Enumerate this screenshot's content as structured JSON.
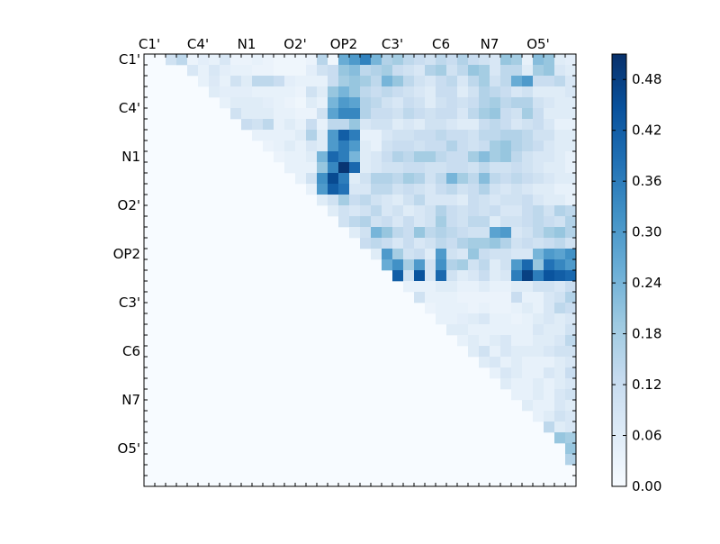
{
  "chart_data": {
    "type": "heatmap",
    "title": "",
    "xlabel": "",
    "ylabel": "",
    "n": 40,
    "matrix_kind": "upper-triangular",
    "x_tick_labels": [
      "C1'",
      "C4'",
      "N1",
      "O2'",
      "OP2",
      "C3'",
      "C6",
      "N7",
      "O5'"
    ],
    "y_tick_labels": [
      "C1'",
      "C4'",
      "N1",
      "O2'",
      "OP2",
      "C3'",
      "C6",
      "N7",
      "O5'"
    ],
    "tick_label_positions": [
      0,
      4.5,
      9,
      13.5,
      18,
      22.5,
      27,
      31.5,
      36
    ],
    "x_ticks_position": "top",
    "colormap": "Blues",
    "color_low": "#f7fbff",
    "color_high": "#08306b",
    "colorbar": {
      "min": 0.0,
      "max": 0.51,
      "ticks": [
        "0.00",
        "0.06",
        "0.12",
        "0.18",
        "0.24",
        "0.30",
        "0.36",
        "0.42",
        "0.48"
      ],
      "tick_values": [
        0.0,
        0.06,
        0.12,
        0.18,
        0.24,
        0.3,
        0.36,
        0.42,
        0.48
      ]
    },
    "rows": [
      {
        "row": 0,
        "start": 2,
        "values": [
          0.1,
          0.14,
          0.03,
          0.05,
          0.04,
          0.08,
          0.03,
          0.03,
          0.04,
          0.03,
          0.02,
          0.02,
          0.02,
          0.03,
          0.15,
          0.02,
          0.26,
          0.3,
          0.35,
          0.24,
          0.16,
          0.18,
          0.14,
          0.12,
          0.1,
          0.14,
          0.12,
          0.16,
          0.12,
          0.1,
          0.08,
          0.2,
          0.18,
          0.04,
          0.22,
          0.2,
          0.06,
          0.05
        ]
      },
      {
        "row": 1,
        "start": 4,
        "values": [
          0.08,
          0.04,
          0.08,
          0.05,
          0.04,
          0.04,
          0.03,
          0.03,
          0.02,
          0.02,
          0.02,
          0.05,
          0.1,
          0.12,
          0.2,
          0.22,
          0.14,
          0.16,
          0.18,
          0.12,
          0.1,
          0.08,
          0.16,
          0.18,
          0.1,
          0.14,
          0.2,
          0.18,
          0.08,
          0.14,
          0.14,
          0.06,
          0.18,
          0.2,
          0.08,
          0.06
        ]
      },
      {
        "row": 2,
        "start": 5,
        "values": [
          0.04,
          0.07,
          0.04,
          0.1,
          0.06,
          0.14,
          0.14,
          0.12,
          0.05,
          0.04,
          0.04,
          0.04,
          0.12,
          0.18,
          0.2,
          0.18,
          0.14,
          0.24,
          0.2,
          0.14,
          0.1,
          0.08,
          0.12,
          0.14,
          0.08,
          0.14,
          0.18,
          0.1,
          0.14,
          0.26,
          0.3,
          0.12,
          0.12,
          0.14,
          0.08
        ]
      },
      {
        "row": 3,
        "start": 6,
        "values": [
          0.06,
          0.05,
          0.05,
          0.05,
          0.04,
          0.04,
          0.04,
          0.04,
          0.03,
          0.1,
          0.06,
          0.2,
          0.24,
          0.2,
          0.14,
          0.12,
          0.14,
          0.12,
          0.1,
          0.08,
          0.06,
          0.12,
          0.12,
          0.06,
          0.1,
          0.16,
          0.14,
          0.12,
          0.08,
          0.1,
          0.06,
          0.06,
          0.06,
          0.08
        ]
      },
      {
        "row": 4,
        "start": 7,
        "values": [
          0.04,
          0.06,
          0.06,
          0.06,
          0.05,
          0.04,
          0.03,
          0.02,
          0.06,
          0.04,
          0.24,
          0.3,
          0.28,
          0.16,
          0.14,
          0.1,
          0.08,
          0.12,
          0.1,
          0.06,
          0.1,
          0.12,
          0.1,
          0.12,
          0.16,
          0.18,
          0.14,
          0.16,
          0.16,
          0.1,
          0.08,
          0.06,
          0.06
        ]
      },
      {
        "row": 5,
        "start": 8,
        "values": [
          0.1,
          0.06,
          0.06,
          0.06,
          0.04,
          0.04,
          0.03,
          0.03,
          0.1,
          0.28,
          0.34,
          0.34,
          0.16,
          0.12,
          0.12,
          0.1,
          0.14,
          0.12,
          0.1,
          0.12,
          0.12,
          0.08,
          0.14,
          0.18,
          0.2,
          0.12,
          0.1,
          0.18,
          0.12,
          0.06,
          0.06,
          0.06
        ]
      },
      {
        "row": 6,
        "start": 9,
        "values": [
          0.12,
          0.1,
          0.14,
          0.04,
          0.06,
          0.04,
          0.12,
          0.04,
          0.14,
          0.14,
          0.2,
          0.08,
          0.1,
          0.1,
          0.06,
          0.08,
          0.06,
          0.1,
          0.1,
          0.08,
          0.06,
          0.06,
          0.12,
          0.14,
          0.12,
          0.08,
          0.1,
          0.12,
          0.08,
          0.04,
          0.04
        ]
      },
      {
        "row": 7,
        "start": 10,
        "values": [
          0.04,
          0.04,
          0.04,
          0.04,
          0.06,
          0.16,
          0.06,
          0.3,
          0.42,
          0.36,
          0.04,
          0.04,
          0.08,
          0.1,
          0.1,
          0.12,
          0.12,
          0.14,
          0.12,
          0.12,
          0.1,
          0.14,
          0.14,
          0.16,
          0.16,
          0.14,
          0.1,
          0.1,
          0.06,
          0.06
        ]
      },
      {
        "row": 8,
        "start": 11,
        "values": [
          0.03,
          0.04,
          0.06,
          0.04,
          0.08,
          0.06,
          0.3,
          0.36,
          0.3,
          0.06,
          0.04,
          0.1,
          0.12,
          0.12,
          0.1,
          0.12,
          0.12,
          0.16,
          0.12,
          0.1,
          0.12,
          0.18,
          0.2,
          0.16,
          0.14,
          0.12,
          0.08,
          0.06,
          0.06
        ]
      },
      {
        "row": 9,
        "start": 12,
        "values": [
          0.03,
          0.04,
          0.04,
          0.06,
          0.24,
          0.4,
          0.36,
          0.24,
          0.06,
          0.08,
          0.12,
          0.16,
          0.14,
          0.18,
          0.18,
          0.14,
          0.12,
          0.12,
          0.18,
          0.22,
          0.18,
          0.2,
          0.14,
          0.1,
          0.08,
          0.08,
          0.06,
          0.04
        ]
      },
      {
        "row": 10,
        "start": 13,
        "values": [
          0.04,
          0.04,
          0.04,
          0.2,
          0.34,
          0.5,
          0.4,
          0.06,
          0.08,
          0.1,
          0.1,
          0.12,
          0.12,
          0.1,
          0.1,
          0.12,
          0.12,
          0.1,
          0.14,
          0.1,
          0.1,
          0.12,
          0.1,
          0.08,
          0.06,
          0.06,
          0.04
        ]
      },
      {
        "row": 11,
        "start": 14,
        "values": [
          0.04,
          0.1,
          0.32,
          0.46,
          0.36,
          0.06,
          0.1,
          0.16,
          0.16,
          0.14,
          0.18,
          0.16,
          0.1,
          0.14,
          0.24,
          0.18,
          0.14,
          0.22,
          0.14,
          0.12,
          0.14,
          0.12,
          0.1,
          0.08,
          0.06,
          0.06
        ]
      },
      {
        "row": 12,
        "start": 15,
        "values": [
          0.04,
          0.3,
          0.42,
          0.38,
          0.08,
          0.08,
          0.14,
          0.14,
          0.1,
          0.12,
          0.1,
          0.08,
          0.12,
          0.14,
          0.1,
          0.12,
          0.16,
          0.1,
          0.08,
          0.1,
          0.08,
          0.06,
          0.06,
          0.04,
          0.04
        ]
      },
      {
        "row": 13,
        "start": 16,
        "values": [
          0.06,
          0.1,
          0.18,
          0.12,
          0.14,
          0.1,
          0.08,
          0.06,
          0.1,
          0.14,
          0.08,
          0.08,
          0.08,
          0.06,
          0.12,
          0.1,
          0.08,
          0.1,
          0.1,
          0.12,
          0.08,
          0.06,
          0.06,
          0.04
        ]
      },
      {
        "row": 14,
        "start": 17,
        "values": [
          0.06,
          0.1,
          0.08,
          0.1,
          0.14,
          0.08,
          0.1,
          0.06,
          0.08,
          0.1,
          0.16,
          0.12,
          0.1,
          0.12,
          0.1,
          0.12,
          0.08,
          0.08,
          0.12,
          0.14,
          0.1,
          0.16,
          0.14
        ]
      },
      {
        "row": 15,
        "start": 18,
        "values": [
          0.1,
          0.14,
          0.16,
          0.1,
          0.12,
          0.08,
          0.12,
          0.08,
          0.1,
          0.18,
          0.12,
          0.1,
          0.14,
          0.14,
          0.06,
          0.1,
          0.1,
          0.12,
          0.14,
          0.12,
          0.1,
          0.16
        ]
      },
      {
        "row": 16,
        "start": 19,
        "values": [
          0.06,
          0.1,
          0.24,
          0.2,
          0.14,
          0.12,
          0.2,
          0.14,
          0.16,
          0.14,
          0.12,
          0.1,
          0.1,
          0.28,
          0.3,
          0.08,
          0.1,
          0.14,
          0.18,
          0.2,
          0.16
        ]
      },
      {
        "row": 17,
        "start": 20,
        "values": [
          0.12,
          0.14,
          0.12,
          0.08,
          0.12,
          0.08,
          0.1,
          0.14,
          0.12,
          0.16,
          0.18,
          0.18,
          0.2,
          0.16,
          0.1,
          0.12,
          0.1,
          0.12,
          0.14,
          0.1
        ]
      },
      {
        "row": 18,
        "start": 21,
        "values": [
          0.06,
          0.3,
          0.18,
          0.1,
          0.12,
          0.06,
          0.3,
          0.1,
          0.08,
          0.2,
          0.12,
          0.1,
          0.1,
          0.08,
          0.08,
          0.24,
          0.3,
          0.28,
          0.32
        ]
      },
      {
        "row": 19,
        "start": 22,
        "values": [
          0.26,
          0.32,
          0.18,
          0.3,
          0.1,
          0.32,
          0.16,
          0.18,
          0.1,
          0.14,
          0.06,
          0.1,
          0.3,
          0.4,
          0.2,
          0.38,
          0.34,
          0.3
        ]
      },
      {
        "row": 20,
        "start": 23,
        "values": [
          0.42,
          0.1,
          0.44,
          0.08,
          0.4,
          0.1,
          0.06,
          0.08,
          0.12,
          0.06,
          0.08,
          0.36,
          0.48,
          0.36,
          0.44,
          0.42,
          0.4
        ]
      },
      {
        "row": 21,
        "start": 24,
        "values": [
          0.04,
          0.04,
          0.04,
          0.06,
          0.06,
          0.04,
          0.04,
          0.06,
          0.04,
          0.04,
          0.06,
          0.06,
          0.1,
          0.1,
          0.08,
          0.12
        ]
      },
      {
        "row": 22,
        "start": 25,
        "values": [
          0.1,
          0.04,
          0.04,
          0.04,
          0.03,
          0.03,
          0.03,
          0.03,
          0.03,
          0.12,
          0.04,
          0.04,
          0.08,
          0.1,
          0.16
        ]
      },
      {
        "row": 23,
        "start": 26,
        "values": [
          0.03,
          0.04,
          0.04,
          0.04,
          0.03,
          0.04,
          0.03,
          0.03,
          0.04,
          0.06,
          0.04,
          0.08,
          0.14,
          0.12
        ]
      },
      {
        "row": 24,
        "start": 27,
        "values": [
          0.04,
          0.04,
          0.05,
          0.06,
          0.08,
          0.04,
          0.04,
          0.03,
          0.04,
          0.06,
          0.08,
          0.06,
          0.08
        ]
      },
      {
        "row": 25,
        "start": 28,
        "values": [
          0.06,
          0.06,
          0.04,
          0.04,
          0.04,
          0.04,
          0.04,
          0.04,
          0.08,
          0.06,
          0.06,
          0.1
        ]
      },
      {
        "row": 26,
        "start": 29,
        "values": [
          0.04,
          0.06,
          0.04,
          0.06,
          0.08,
          0.04,
          0.04,
          0.06,
          0.06,
          0.08,
          0.14
        ]
      },
      {
        "row": 27,
        "start": 30,
        "values": [
          0.06,
          0.1,
          0.04,
          0.08,
          0.06,
          0.06,
          0.06,
          0.08,
          0.1,
          0.1
        ]
      },
      {
        "row": 28,
        "start": 31,
        "values": [
          0.06,
          0.08,
          0.04,
          0.06,
          0.04,
          0.04,
          0.04,
          0.06,
          0.08
        ]
      },
      {
        "row": 29,
        "start": 32,
        "values": [
          0.04,
          0.08,
          0.06,
          0.04,
          0.04,
          0.08,
          0.06,
          0.12
        ]
      },
      {
        "row": 30,
        "start": 33,
        "values": [
          0.06,
          0.04,
          0.04,
          0.06,
          0.04,
          0.06,
          0.08
        ]
      },
      {
        "row": 31,
        "start": 34,
        "values": [
          0.04,
          0.04,
          0.06,
          0.04,
          0.08,
          0.1
        ]
      },
      {
        "row": 32,
        "start": 35,
        "values": [
          0.06,
          0.04,
          0.04,
          0.08,
          0.06
        ]
      },
      {
        "row": 33,
        "start": 36,
        "values": [
          0.04,
          0.06,
          0.1,
          0.08
        ]
      },
      {
        "row": 34,
        "start": 37,
        "values": [
          0.14,
          0.06,
          0.08
        ]
      },
      {
        "row": 35,
        "start": 38,
        "values": [
          0.2,
          0.18
        ]
      },
      {
        "row": 36,
        "start": 39,
        "values": [
          0.2
        ]
      },
      {
        "row": 37,
        "start": 39,
        "values": [
          0.16
        ]
      }
    ]
  }
}
